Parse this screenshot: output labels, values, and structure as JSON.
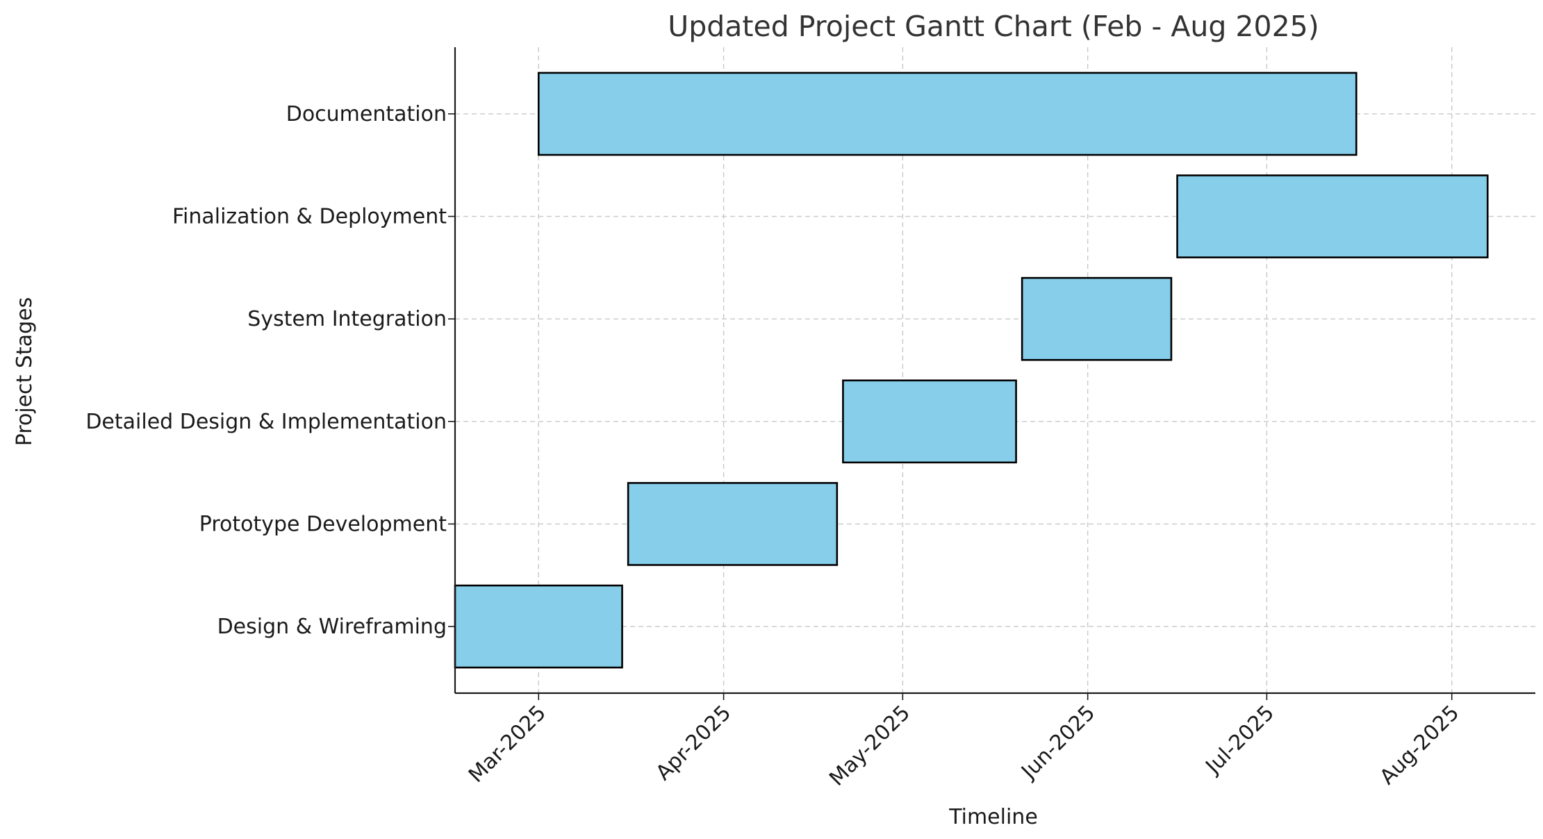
{
  "chart_data": {
    "type": "gantt",
    "title": "Updated Project Gantt Chart (Feb - Aug 2025)",
    "xlabel": "Timeline",
    "ylabel": "Project Stages",
    "xlim": [
      "2025-02-15",
      "2025-08-15"
    ],
    "x_ticks": [
      {
        "date": "2025-03-01",
        "label": "Mar-2025"
      },
      {
        "date": "2025-04-01",
        "label": "Apr-2025"
      },
      {
        "date": "2025-05-01",
        "label": "May-2025"
      },
      {
        "date": "2025-06-01",
        "label": "Jun-2025"
      },
      {
        "date": "2025-07-01",
        "label": "Jul-2025"
      },
      {
        "date": "2025-08-01",
        "label": "Aug-2025"
      }
    ],
    "tasks": [
      {
        "name": "Design & Wireframing",
        "start": "2025-02-15",
        "end": "2025-03-15"
      },
      {
        "name": "Prototype Development",
        "start": "2025-03-16",
        "end": "2025-04-20"
      },
      {
        "name": "Detailed Design & Implementation",
        "start": "2025-04-21",
        "end": "2025-05-20"
      },
      {
        "name": "System Integration",
        "start": "2025-05-21",
        "end": "2025-06-15"
      },
      {
        "name": "Finalization & Deployment",
        "start": "2025-06-16",
        "end": "2025-08-07"
      },
      {
        "name": "Documentation",
        "start": "2025-03-01",
        "end": "2025-07-16"
      }
    ],
    "bar_color": "#87CEEB",
    "grid": true,
    "legend": false
  }
}
